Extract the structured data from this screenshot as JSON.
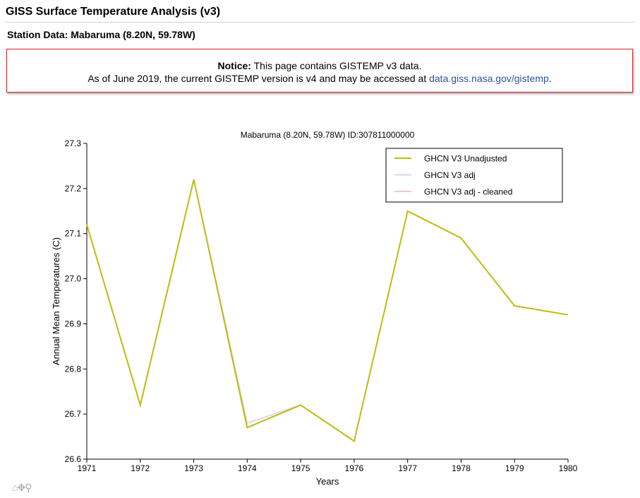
{
  "page": {
    "title": "GISS Surface Temperature Analysis (v3)",
    "station_heading": "Station Data: Mabaruma (8.20N, 59.78W)"
  },
  "notice": {
    "label": "Notice:",
    "line1": "This page contains GISTEMP v3 data.",
    "line2": "As of June 2019, the current GISTEMP version is v4 and may be accessed at",
    "link_text": "data.giss.nasa.gov/gistemp",
    "tail": "."
  },
  "tools": {
    "home_icon": "home-icon",
    "pan_icon": "pan-icon",
    "zoom_icon": "zoom-icon"
  },
  "chart_data": {
    "type": "line",
    "title": "Mabaruma (8.20N, 59.78W) ID:307811000000",
    "xlabel": "Years",
    "ylabel": "Annual Mean Temperatures (C)",
    "xlim": [
      1971,
      1980
    ],
    "ylim": [
      26.6,
      27.3
    ],
    "xticks": [
      1971,
      1972,
      1973,
      1974,
      1975,
      1976,
      1977,
      1978,
      1979,
      1980
    ],
    "yticks": [
      "26.6",
      "26.7",
      "26.8",
      "26.9",
      "27.0",
      "27.1",
      "27.2",
      "27.3"
    ],
    "legend_position": "top-right",
    "grid": false,
    "x": [
      1971,
      1972,
      1973,
      1974,
      1975,
      1976,
      1977,
      1978,
      1979,
      1980
    ],
    "series": [
      {
        "name": "GHCN V3 adj - cleaned",
        "color": "#f5c6cf",
        "values": [
          27.12,
          26.72,
          27.22,
          26.68,
          26.72,
          26.64,
          null,
          null,
          null,
          null
        ]
      },
      {
        "name": "GHCN V3 adj",
        "color": "#d9d2ec",
        "values": [
          27.12,
          26.72,
          27.22,
          26.68,
          26.72,
          26.64,
          null,
          null,
          null,
          null
        ]
      },
      {
        "name": "GHCN V3 Unadjusted",
        "color": "#bfbc10",
        "values": [
          27.12,
          26.72,
          27.22,
          26.67,
          26.72,
          26.64,
          27.15,
          27.09,
          26.94,
          26.92
        ]
      }
    ]
  }
}
